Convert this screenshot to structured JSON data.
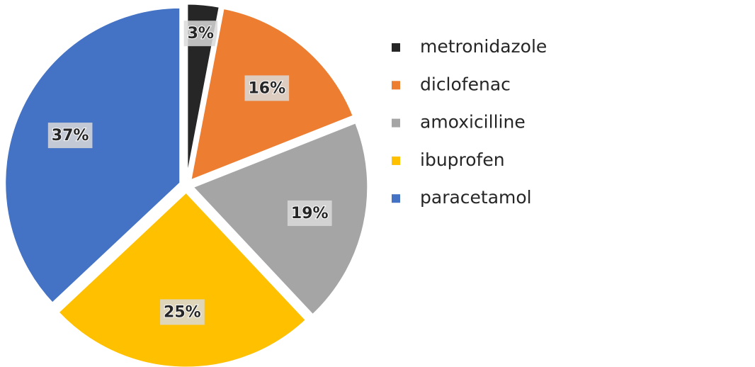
{
  "chart_data": {
    "type": "pie",
    "categories": [
      "metronidazole",
      "diclofenac",
      "amoxicilline",
      "ibuprofen",
      "paracetamol"
    ],
    "values": [
      3,
      16,
      19,
      25,
      37
    ],
    "value_labels": [
      "3%",
      "16%",
      "19%",
      "25%",
      "37%"
    ],
    "colors": [
      "#262626",
      "#ed7d31",
      "#a5a5a5",
      "#ffc000",
      "#4472c4"
    ],
    "legend": "right"
  }
}
